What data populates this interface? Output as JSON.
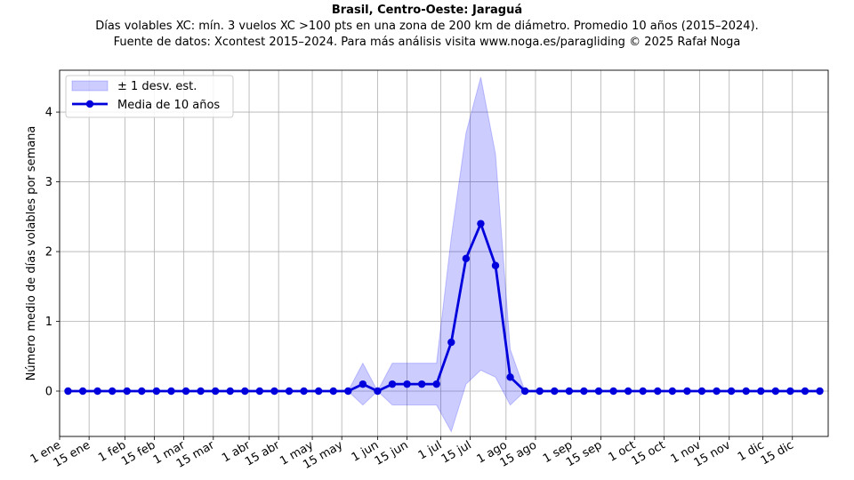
{
  "chart_data": {
    "type": "line",
    "title": "Brasil, Centro-Oeste: Jaraguá",
    "subtitle": "Días volables XC: mín. 3 vuelos XC >100 pts en una zona de 200 km de diámetro. Promedio 10 años (2015–2024).",
    "source": "Fuente de datos: Xcontest 2015–2024. Para más análisis visita www.noga.es/paragliding © 2025 Rafał Noga",
    "xlabel": "",
    "ylabel": "Número medio de días volables por semana",
    "ylim": [
      -0.65,
      4.6
    ],
    "xlim": [
      1,
      366
    ],
    "grid": true,
    "legend_position": "top-left",
    "y_ticks": [
      0,
      1,
      2,
      3,
      4
    ],
    "x_ticks": [
      {
        "day": 1,
        "label": "1 ene"
      },
      {
        "day": 15,
        "label": "15 ene"
      },
      {
        "day": 32,
        "label": "1 feb"
      },
      {
        "day": 46,
        "label": "15 feb"
      },
      {
        "day": 60,
        "label": "1 mar"
      },
      {
        "day": 74,
        "label": "15 mar"
      },
      {
        "day": 91,
        "label": "1 abr"
      },
      {
        "day": 105,
        "label": "15 abr"
      },
      {
        "day": 121,
        "label": "1 may"
      },
      {
        "day": 135,
        "label": "15 may"
      },
      {
        "day": 152,
        "label": "1 jun"
      },
      {
        "day": 166,
        "label": "15 jun"
      },
      {
        "day": 182,
        "label": "1 jul"
      },
      {
        "day": 196,
        "label": "15 jul"
      },
      {
        "day": 213,
        "label": "1 ago"
      },
      {
        "day": 227,
        "label": "15 ago"
      },
      {
        "day": 244,
        "label": "1 sep"
      },
      {
        "day": 258,
        "label": "15 sep"
      },
      {
        "day": 274,
        "label": "1 oct"
      },
      {
        "day": 288,
        "label": "15 oct"
      },
      {
        "day": 305,
        "label": "1 nov"
      },
      {
        "day": 319,
        "label": "15 nov"
      },
      {
        "day": 335,
        "label": "1 dic"
      },
      {
        "day": 349,
        "label": "15 dic"
      }
    ],
    "x": [
      5,
      12,
      19,
      26,
      33,
      40,
      47,
      54,
      61,
      68,
      75,
      82,
      89,
      96,
      103,
      110,
      117,
      124,
      131,
      138,
      145,
      152,
      159,
      166,
      173,
      180,
      187,
      194,
      201,
      208,
      215,
      222,
      229,
      236,
      243,
      250,
      257,
      264,
      271,
      278,
      285,
      292,
      299,
      306,
      313,
      320,
      327,
      334,
      341,
      348,
      355,
      362
    ],
    "series": [
      {
        "name": "Media de 10 años",
        "color": "#0000dd",
        "values": [
          0,
          0,
          0,
          0,
          0,
          0,
          0,
          0,
          0,
          0,
          0,
          0,
          0,
          0,
          0,
          0,
          0,
          0,
          0,
          0,
          0.1,
          0,
          0.1,
          0.1,
          0.1,
          0.1,
          0.7,
          1.9,
          2.4,
          1.8,
          0.2,
          0,
          0,
          0,
          0,
          0,
          0,
          0,
          0,
          0,
          0,
          0,
          0,
          0,
          0,
          0,
          0,
          0,
          0,
          0,
          0,
          0
        ]
      }
    ],
    "band": {
      "name": "± 1 desv. est.",
      "color": "#0000ff",
      "upper": [
        0,
        0,
        0,
        0,
        0,
        0,
        0,
        0,
        0,
        0,
        0,
        0,
        0,
        0,
        0,
        0,
        0,
        0,
        0,
        0,
        0.4,
        0,
        0.4,
        0.4,
        0.4,
        0.4,
        2.2,
        3.7,
        4.5,
        3.4,
        0.6,
        0,
        0,
        0,
        0,
        0,
        0,
        0,
        0,
        0,
        0,
        0,
        0,
        0,
        0,
        0,
        0,
        0,
        0,
        0,
        0,
        0
      ],
      "lower": [
        0,
        0,
        0,
        0,
        0,
        0,
        0,
        0,
        0,
        0,
        0,
        0,
        0,
        0,
        0,
        0,
        0,
        0,
        0,
        0,
        -0.2,
        0,
        -0.2,
        -0.2,
        -0.2,
        -0.2,
        -0.58,
        0.1,
        0.3,
        0.2,
        -0.2,
        0,
        0,
        0,
        0,
        0,
        0,
        0,
        0,
        0,
        0,
        0,
        0,
        0,
        0,
        0,
        0,
        0,
        0,
        0,
        0,
        0
      ]
    }
  }
}
